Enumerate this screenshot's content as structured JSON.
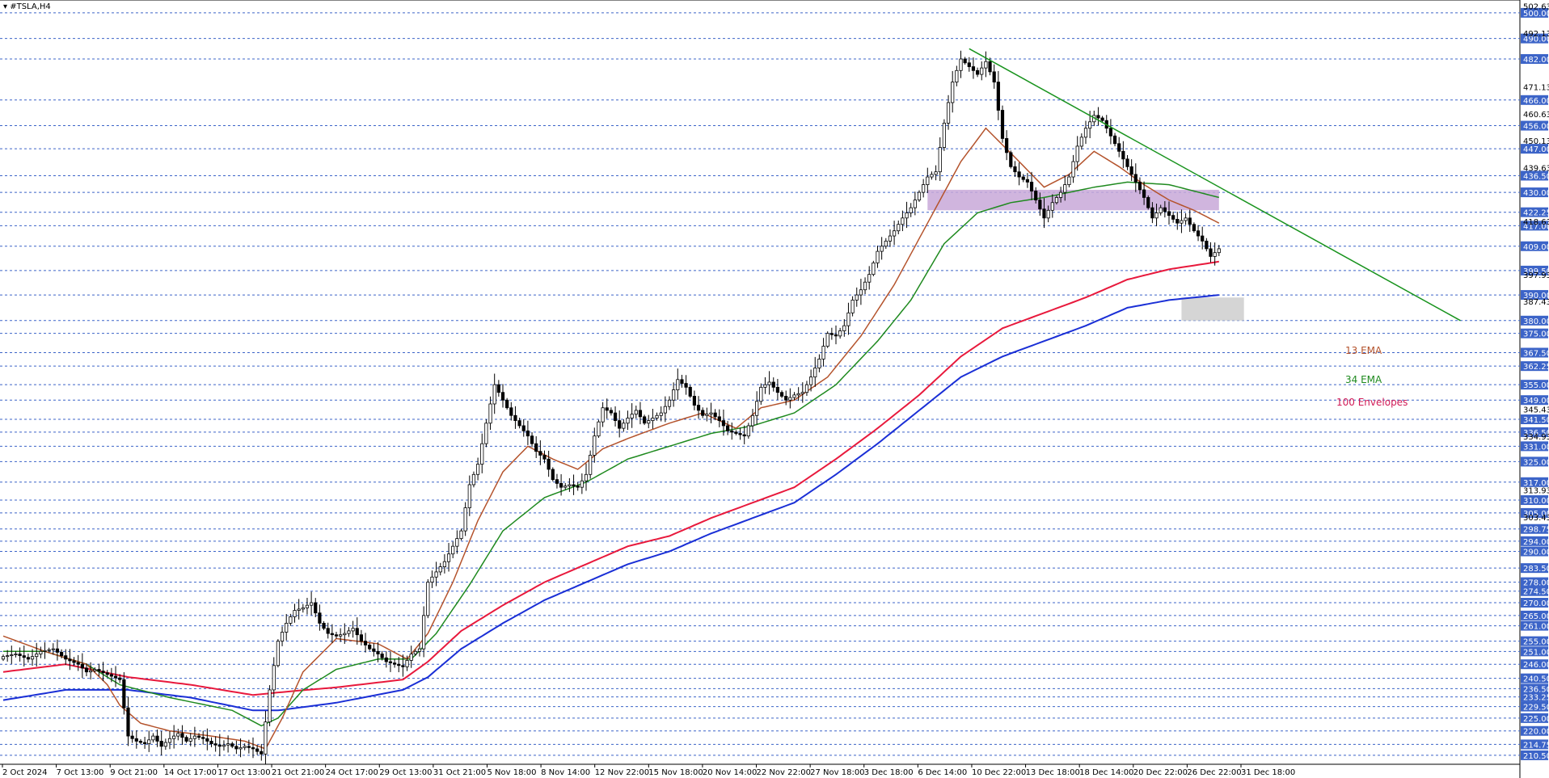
{
  "window": {
    "symbol_label": "#TSLA,H4"
  },
  "legend": {
    "ema13": {
      "label": "13 EMA",
      "color": "#b4532c"
    },
    "ema34": {
      "label": "34 EMA",
      "color": "#1f8a1f"
    },
    "envelopes": {
      "label": "100 Envelopes",
      "color": "#d11a56"
    }
  },
  "colors": {
    "grid": "#3c64c8",
    "price_tag_bg": "#3c64c8",
    "trendline": "#18931d",
    "resistance_zone": "#c8a8d8",
    "support_zone": "#d0d0d0",
    "envelope_upper": "#e8193c",
    "envelope_lower": "#1a2fd6",
    "ema13": "#b4532c",
    "ema34": "#1f8a1f"
  },
  "chart_data": {
    "type": "candlestick",
    "timeframe": "H4",
    "ylim": [
      207,
      505
    ],
    "y_labels_tagged": [
      "500.00",
      "490.00",
      "482.00",
      "466.00",
      "456.00",
      "447.00",
      "436.50",
      "430.00",
      "422.25",
      "417.00",
      "409.00",
      "399.50",
      "390.00",
      "380.00",
      "375.00",
      "367.50",
      "362.25",
      "355.00",
      "349.00",
      "341.50",
      "336.50",
      "331.00",
      "325.00",
      "317.00",
      "310.00",
      "305.00",
      "298.75",
      "294.00",
      "290.00",
      "283.50",
      "278.00",
      "274.50",
      "270.00",
      "265.00",
      "261.00",
      "255.00",
      "251.00",
      "246.00",
      "240.50",
      "236.50",
      "233.25",
      "229.50",
      "225.00",
      "220.00",
      "214.75",
      "210.50"
    ],
    "y_labels_plain": [
      "502.63",
      "492.13",
      "471.13",
      "460.63",
      "450.13",
      "439.63",
      "418.63",
      "397.93",
      "387.43",
      "345.43",
      "313.93",
      "334.93",
      "303.43"
    ],
    "x_labels": [
      "2 Oct 2024",
      "7 Oct 13:00",
      "9 Oct 21:00",
      "14 Oct 17:00",
      "17 Oct 13:00",
      "21 Oct 21:00",
      "24 Oct 17:00",
      "29 Oct 13:00",
      "31 Oct 21:00",
      "5 Nov 18:00",
      "8 Nov 14:00",
      "12 Nov 22:00",
      "15 Nov 18:00",
      "20 Nov 14:00",
      "22 Nov 22:00",
      "27 Nov 18:00",
      "3 Dec 18:00",
      "6 Dec 14:00",
      "10 Dec 22:00",
      "13 Dec 18:00",
      "18 Dec 14:00",
      "20 Dec 22:00",
      "26 Dec 22:00",
      "31 Dec 18:00"
    ],
    "waypoints": [
      [
        0,
        249
      ],
      [
        3,
        250
      ],
      [
        6,
        248
      ],
      [
        9,
        251
      ],
      [
        12,
        252
      ],
      [
        15,
        248
      ],
      [
        18,
        246
      ],
      [
        20,
        243
      ],
      [
        22,
        244
      ],
      [
        25,
        242
      ],
      [
        28,
        240
      ],
      [
        30,
        218
      ],
      [
        32,
        216
      ],
      [
        34,
        215
      ],
      [
        36,
        218
      ],
      [
        38,
        214
      ],
      [
        40,
        217
      ],
      [
        42,
        219
      ],
      [
        44,
        216
      ],
      [
        46,
        218
      ],
      [
        48,
        217
      ],
      [
        50,
        215
      ],
      [
        52,
        214
      ],
      [
        54,
        215
      ],
      [
        56,
        213
      ],
      [
        58,
        214
      ],
      [
        60,
        213
      ],
      [
        62,
        211
      ],
      [
        64,
        236
      ],
      [
        66,
        255
      ],
      [
        68,
        262
      ],
      [
        70,
        267
      ],
      [
        72,
        268
      ],
      [
        74,
        270
      ],
      [
        76,
        262
      ],
      [
        78,
        258
      ],
      [
        80,
        257
      ],
      [
        82,
        258
      ],
      [
        84,
        260
      ],
      [
        86,
        255
      ],
      [
        88,
        252
      ],
      [
        90,
        250
      ],
      [
        92,
        247
      ],
      [
        94,
        246
      ],
      [
        96,
        245
      ],
      [
        98,
        250
      ],
      [
        100,
        252
      ],
      [
        102,
        278
      ],
      [
        104,
        282
      ],
      [
        106,
        286
      ],
      [
        108,
        292
      ],
      [
        110,
        298
      ],
      [
        112,
        316
      ],
      [
        114,
        324
      ],
      [
        116,
        340
      ],
      [
        118,
        355
      ],
      [
        120,
        349
      ],
      [
        122,
        343
      ],
      [
        124,
        339
      ],
      [
        126,
        335
      ],
      [
        128,
        329
      ],
      [
        130,
        326
      ],
      [
        132,
        318
      ],
      [
        134,
        315
      ],
      [
        136,
        316
      ],
      [
        138,
        315
      ],
      [
        140,
        320
      ],
      [
        142,
        335
      ],
      [
        144,
        346
      ],
      [
        146,
        344
      ],
      [
        148,
        338
      ],
      [
        150,
        342
      ],
      [
        152,
        345
      ],
      [
        154,
        340
      ],
      [
        156,
        342
      ],
      [
        158,
        344
      ],
      [
        160,
        349
      ],
      [
        162,
        357
      ],
      [
        164,
        354
      ],
      [
        166,
        347
      ],
      [
        168,
        343
      ],
      [
        170,
        344
      ],
      [
        172,
        341
      ],
      [
        174,
        337
      ],
      [
        176,
        336
      ],
      [
        178,
        335
      ],
      [
        180,
        343
      ],
      [
        182,
        354
      ],
      [
        184,
        356
      ],
      [
        186,
        352
      ],
      [
        188,
        349
      ],
      [
        190,
        351
      ],
      [
        192,
        352
      ],
      [
        194,
        358
      ],
      [
        196,
        365
      ],
      [
        198,
        375
      ],
      [
        200,
        374
      ],
      [
        202,
        378
      ],
      [
        204,
        388
      ],
      [
        206,
        392
      ],
      [
        208,
        398
      ],
      [
        210,
        407
      ],
      [
        212,
        411
      ],
      [
        214,
        415
      ],
      [
        216,
        420
      ],
      [
        218,
        424
      ],
      [
        220,
        430
      ],
      [
        222,
        436
      ],
      [
        224,
        438
      ],
      [
        226,
        457
      ],
      [
        228,
        473
      ],
      [
        230,
        482
      ],
      [
        232,
        479
      ],
      [
        234,
        476
      ],
      [
        236,
        481
      ],
      [
        238,
        473
      ],
      [
        240,
        451
      ],
      [
        242,
        440
      ],
      [
        244,
        436
      ],
      [
        246,
        434
      ],
      [
        248,
        427
      ],
      [
        250,
        420
      ],
      [
        252,
        426
      ],
      [
        254,
        430
      ],
      [
        256,
        436
      ],
      [
        258,
        448
      ],
      [
        260,
        455
      ],
      [
        262,
        460
      ],
      [
        264,
        458
      ],
      [
        266,
        452
      ],
      [
        268,
        446
      ],
      [
        270,
        440
      ],
      [
        272,
        434
      ],
      [
        274,
        428
      ],
      [
        276,
        420
      ],
      [
        278,
        424
      ],
      [
        280,
        421
      ],
      [
        282,
        418
      ],
      [
        284,
        420
      ],
      [
        286,
        415
      ],
      [
        288,
        411
      ],
      [
        290,
        405
      ],
      [
        292,
        408
      ]
    ],
    "ema13_waypoints": [
      [
        0,
        257
      ],
      [
        10,
        251
      ],
      [
        20,
        246
      ],
      [
        25,
        238
      ],
      [
        28,
        230
      ],
      [
        33,
        223
      ],
      [
        40,
        220
      ],
      [
        50,
        218
      ],
      [
        58,
        216
      ],
      [
        63,
        213
      ],
      [
        67,
        225
      ],
      [
        72,
        243
      ],
      [
        80,
        256
      ],
      [
        90,
        254
      ],
      [
        97,
        248
      ],
      [
        102,
        258
      ],
      [
        108,
        278
      ],
      [
        114,
        302
      ],
      [
        120,
        321
      ],
      [
        126,
        331
      ],
      [
        132,
        326
      ],
      [
        138,
        322
      ],
      [
        144,
        330
      ],
      [
        150,
        334
      ],
      [
        160,
        340
      ],
      [
        168,
        344
      ],
      [
        176,
        338
      ],
      [
        182,
        346
      ],
      [
        190,
        349
      ],
      [
        198,
        358
      ],
      [
        206,
        374
      ],
      [
        214,
        394
      ],
      [
        222,
        418
      ],
      [
        230,
        442
      ],
      [
        236,
        455
      ],
      [
        244,
        442
      ],
      [
        250,
        432
      ],
      [
        256,
        437
      ],
      [
        262,
        446
      ],
      [
        268,
        440
      ],
      [
        274,
        433
      ],
      [
        280,
        427
      ],
      [
        286,
        423
      ],
      [
        292,
        418
      ]
    ],
    "ema34_waypoints": [
      [
        0,
        251
      ],
      [
        10,
        251
      ],
      [
        20,
        246
      ],
      [
        28,
        238
      ],
      [
        40,
        233
      ],
      [
        55,
        228
      ],
      [
        62,
        222
      ],
      [
        66,
        225
      ],
      [
        72,
        236
      ],
      [
        80,
        244
      ],
      [
        90,
        248
      ],
      [
        98,
        248
      ],
      [
        104,
        258
      ],
      [
        112,
        277
      ],
      [
        120,
        298
      ],
      [
        130,
        311
      ],
      [
        140,
        317
      ],
      [
        150,
        326
      ],
      [
        160,
        331
      ],
      [
        170,
        336
      ],
      [
        180,
        339
      ],
      [
        190,
        344
      ],
      [
        200,
        355
      ],
      [
        210,
        372
      ],
      [
        218,
        388
      ],
      [
        226,
        410
      ],
      [
        234,
        422
      ],
      [
        242,
        426
      ],
      [
        250,
        428
      ],
      [
        256,
        430
      ],
      [
        262,
        432
      ],
      [
        270,
        434
      ],
      [
        280,
        433
      ],
      [
        292,
        428
      ]
    ],
    "envelope_upper_waypoints": [
      [
        0,
        243
      ],
      [
        15,
        246
      ],
      [
        30,
        241
      ],
      [
        45,
        238
      ],
      [
        60,
        234
      ],
      [
        66,
        235
      ],
      [
        80,
        237
      ],
      [
        96,
        240
      ],
      [
        102,
        247
      ],
      [
        110,
        259
      ],
      [
        120,
        269
      ],
      [
        130,
        278
      ],
      [
        140,
        285
      ],
      [
        150,
        292
      ],
      [
        160,
        296
      ],
      [
        170,
        303
      ],
      [
        180,
        309
      ],
      [
        190,
        315
      ],
      [
        200,
        326
      ],
      [
        210,
        338
      ],
      [
        220,
        351
      ],
      [
        230,
        366
      ],
      [
        240,
        377
      ],
      [
        250,
        383
      ],
      [
        260,
        389
      ],
      [
        270,
        396
      ],
      [
        280,
        400
      ],
      [
        292,
        403
      ]
    ],
    "envelope_lower_waypoints": [
      [
        0,
        232
      ],
      [
        15,
        236
      ],
      [
        30,
        236
      ],
      [
        45,
        233
      ],
      [
        60,
        228
      ],
      [
        66,
        228
      ],
      [
        80,
        231
      ],
      [
        96,
        236
      ],
      [
        102,
        241
      ],
      [
        110,
        252
      ],
      [
        120,
        262
      ],
      [
        130,
        271
      ],
      [
        140,
        278
      ],
      [
        150,
        285
      ],
      [
        160,
        290
      ],
      [
        170,
        297
      ],
      [
        180,
        303
      ],
      [
        190,
        309
      ],
      [
        200,
        320
      ],
      [
        210,
        332
      ],
      [
        220,
        345
      ],
      [
        230,
        358
      ],
      [
        240,
        366
      ],
      [
        250,
        372
      ],
      [
        260,
        378
      ],
      [
        270,
        385
      ],
      [
        280,
        388
      ],
      [
        292,
        390
      ]
    ],
    "trendline": {
      "from_bar": 232,
      "from_price": 486,
      "to_bar": 350,
      "to_price": 380
    },
    "resistance_zone": {
      "from_bar": 222,
      "to_bar": 292,
      "top": 431,
      "bottom": 423
    },
    "support_zone": {
      "from_bar": 283,
      "to_bar": 298,
      "top": 389,
      "bottom": 380
    },
    "grid": true,
    "legend_position": "right"
  }
}
